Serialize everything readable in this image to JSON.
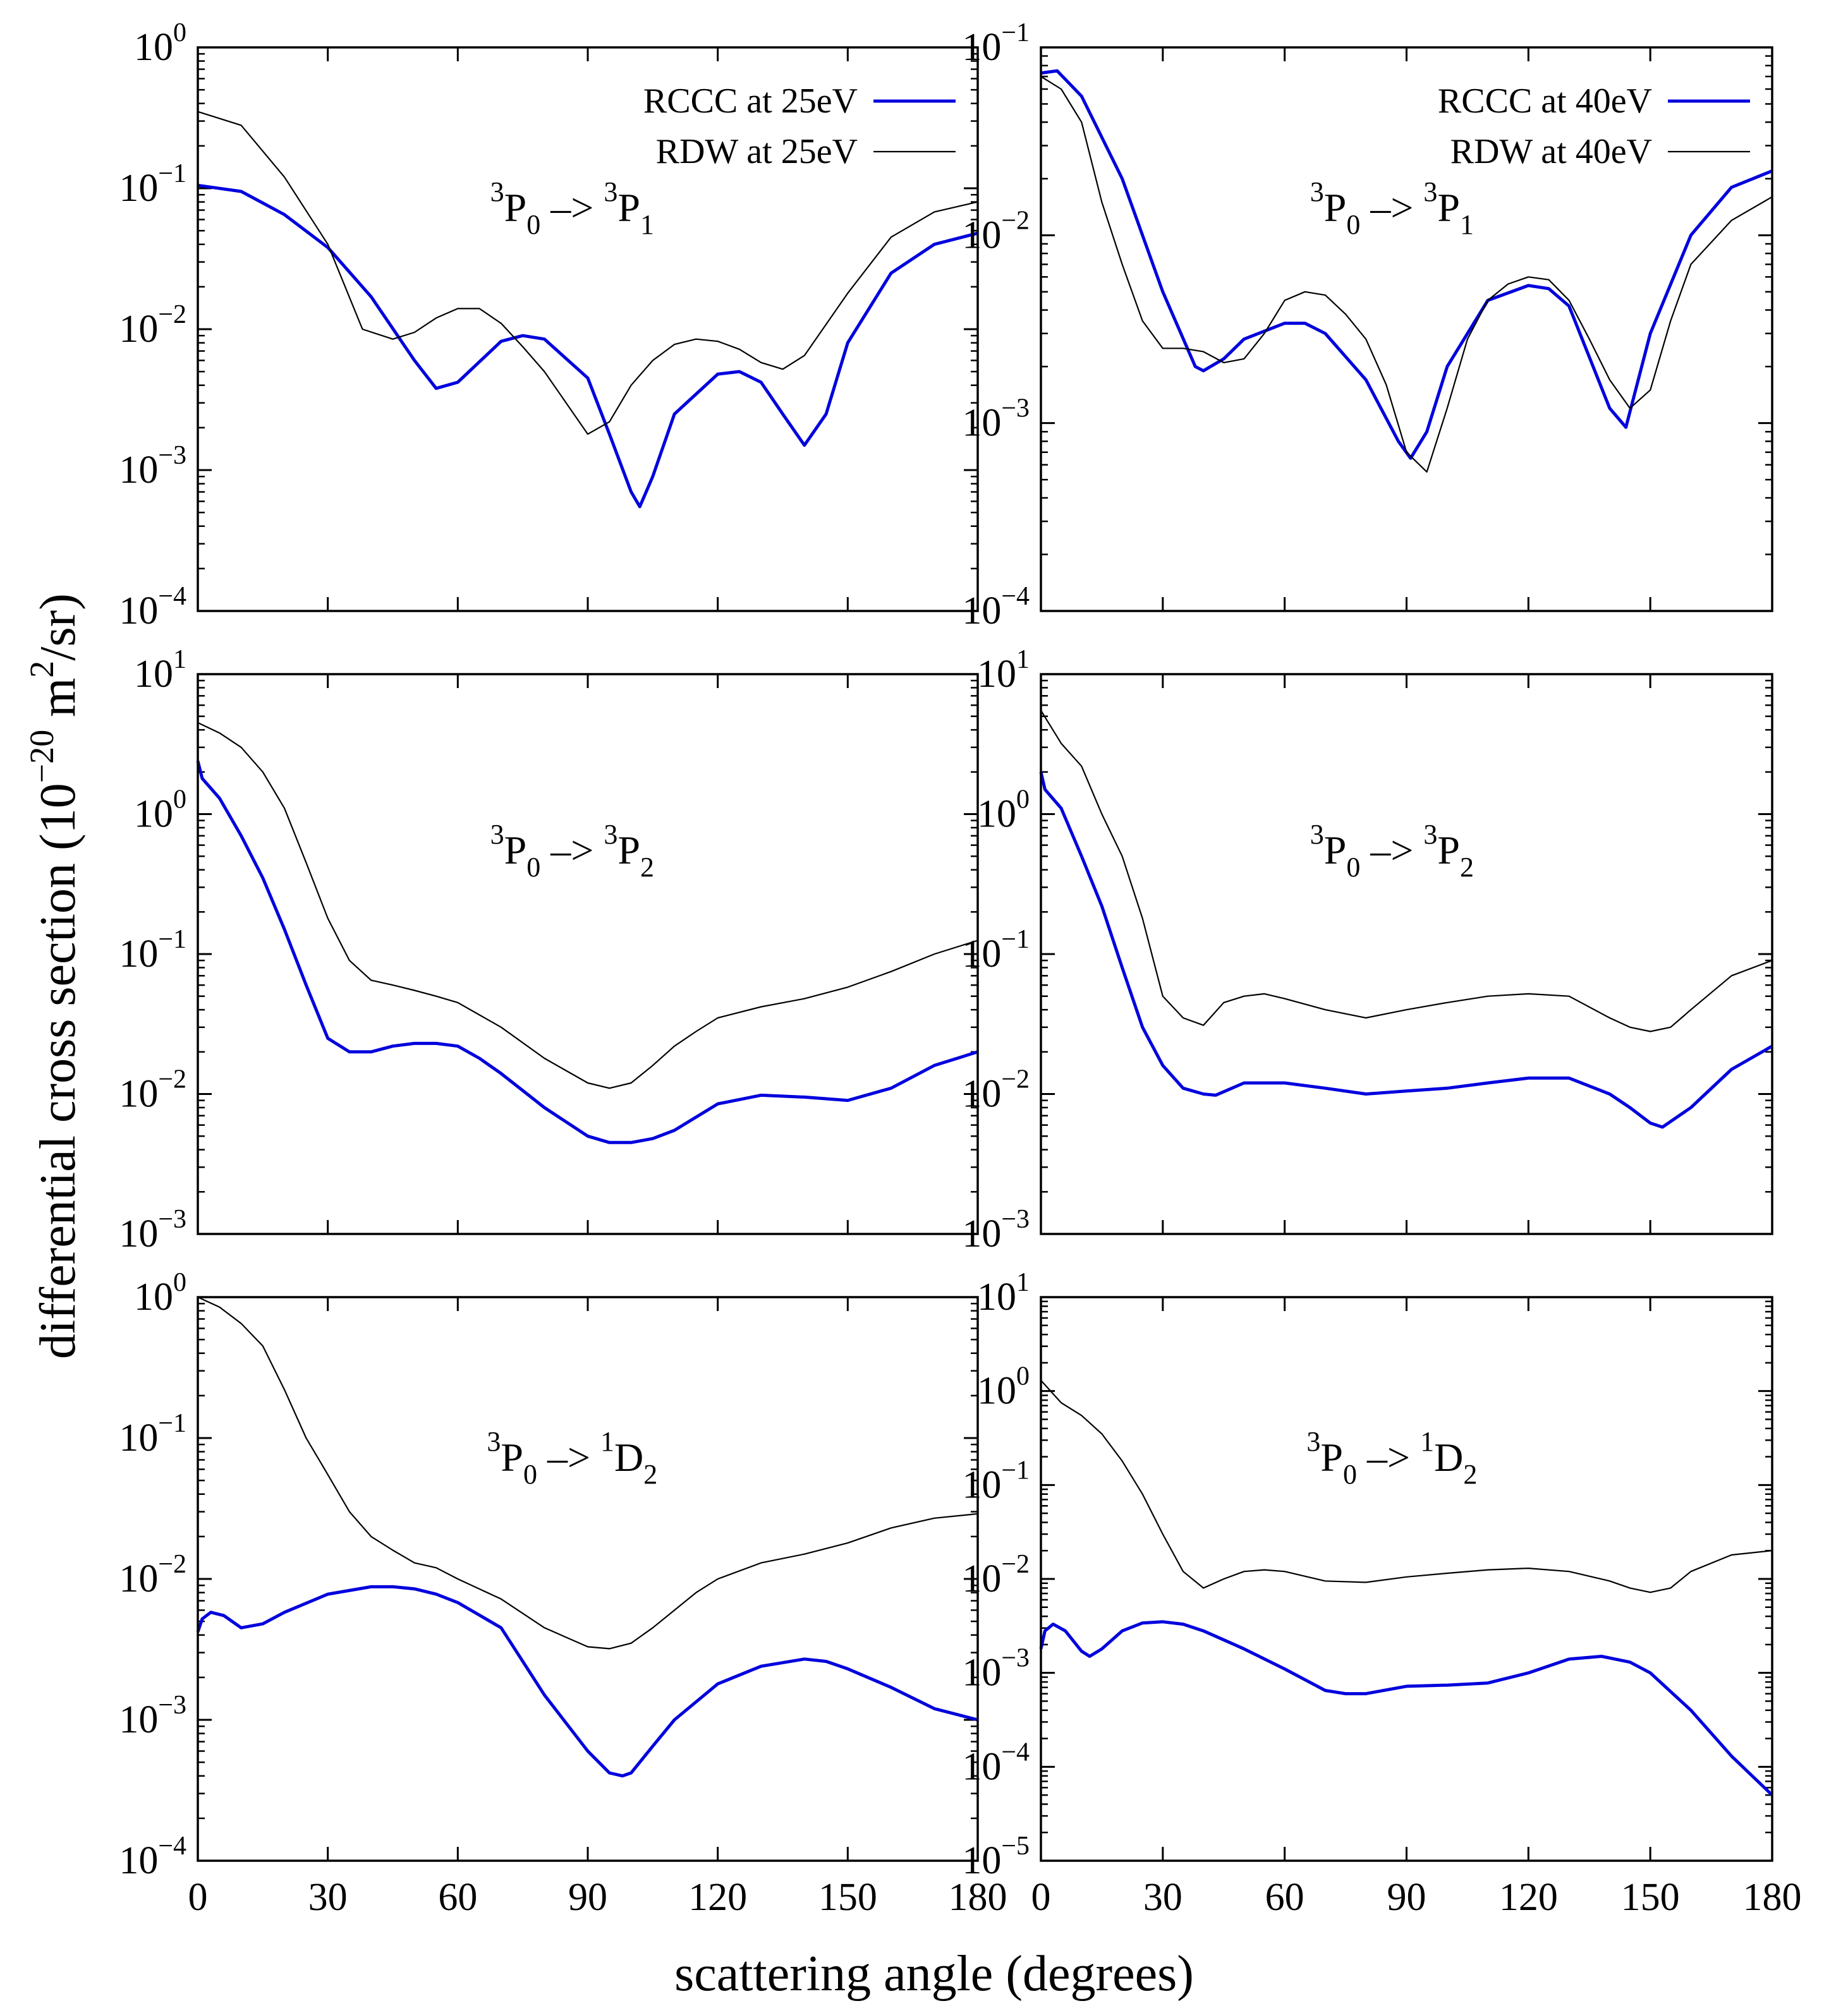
{
  "figure": {
    "xlabel": "scattering angle (degrees)",
    "ylabel": {
      "prefix": "differential cross section (10",
      "exp": "−20",
      "mid": " m",
      "exp2": "2",
      "suffix": "/sr)"
    }
  },
  "colors": {
    "rccc": "#0000dd",
    "rdw": "#000000",
    "axis": "#000000"
  },
  "chart_data": [
    {
      "id": "p1",
      "type": "line",
      "yscale": "log",
      "xlim": [
        0,
        180
      ],
      "ylim_exp": [
        -4,
        0
      ],
      "xticks": [
        0,
        30,
        60,
        90,
        120,
        150,
        180
      ],
      "label": {
        "a": "3",
        "b": "P",
        "c": "0",
        "d": " –> ",
        "e": "3",
        "f": "P",
        "g": "1"
      },
      "legend": [
        {
          "name": "RCCC at 25eV",
          "key": "rccc"
        },
        {
          "name": "RDW at 25eV",
          "key": "rdw"
        }
      ],
      "series": [
        {
          "name": "RCCC at 25eV",
          "key": "rccc",
          "x": [
            0,
            10,
            20,
            30,
            40,
            50,
            55,
            60,
            70,
            75,
            80,
            90,
            95,
            100,
            102,
            105,
            110,
            120,
            125,
            130,
            135,
            140,
            145,
            150,
            160,
            170,
            180
          ],
          "y": [
            0.105,
            0.095,
            0.065,
            0.038,
            0.017,
            0.006,
            0.0038,
            0.0042,
            0.0082,
            0.009,
            0.0085,
            0.0045,
            0.0018,
            0.0007,
            0.00055,
            0.0009,
            0.0025,
            0.0048,
            0.005,
            0.0042,
            0.0025,
            0.0015,
            0.0025,
            0.008,
            0.025,
            0.04,
            0.048
          ]
        },
        {
          "name": "RDW at 25eV",
          "key": "rdw",
          "x": [
            0,
            10,
            20,
            30,
            38,
            45,
            50,
            55,
            60,
            65,
            70,
            75,
            80,
            85,
            90,
            95,
            100,
            105,
            110,
            115,
            120,
            125,
            130,
            135,
            140,
            150,
            160,
            170,
            180
          ],
          "y": [
            0.35,
            0.28,
            0.12,
            0.04,
            0.01,
            0.0085,
            0.0095,
            0.012,
            0.014,
            0.014,
            0.011,
            0.0075,
            0.005,
            0.003,
            0.0018,
            0.0022,
            0.004,
            0.006,
            0.0078,
            0.0085,
            0.0082,
            0.0072,
            0.0058,
            0.0052,
            0.0065,
            0.018,
            0.045,
            0.068,
            0.08
          ]
        }
      ]
    },
    {
      "id": "p2",
      "type": "line",
      "yscale": "log",
      "xlim": [
        0,
        180
      ],
      "ylim_exp": [
        -4,
        -1
      ],
      "xticks": [
        0,
        30,
        60,
        90,
        120,
        150,
        180
      ],
      "label": {
        "a": "3",
        "b": "P",
        "c": "0",
        "d": " –> ",
        "e": "3",
        "f": "P",
        "g": "1"
      },
      "legend": [
        {
          "name": "RCCC at 40eV",
          "key": "rccc"
        },
        {
          "name": "RDW at 40eV",
          "key": "rdw"
        }
      ],
      "series": [
        {
          "name": "RCCC at 40eV",
          "key": "rccc",
          "x": [
            0,
            4,
            10,
            20,
            30,
            38,
            40,
            45,
            50,
            60,
            65,
            70,
            80,
            88,
            91,
            95,
            100,
            110,
            120,
            125,
            130,
            140,
            144,
            150,
            160,
            170,
            180
          ],
          "y": [
            0.073,
            0.075,
            0.055,
            0.02,
            0.005,
            0.002,
            0.0019,
            0.0022,
            0.0028,
            0.0034,
            0.0034,
            0.003,
            0.0017,
            0.0008,
            0.00065,
            0.0009,
            0.002,
            0.0045,
            0.0054,
            0.0052,
            0.0042,
            0.0012,
            0.00095,
            0.003,
            0.01,
            0.018,
            0.022
          ]
        },
        {
          "name": "RDW at 40eV",
          "key": "rdw",
          "x": [
            0,
            5,
            10,
            15,
            20,
            25,
            30,
            35,
            40,
            45,
            50,
            55,
            60,
            65,
            70,
            75,
            80,
            85,
            90,
            95,
            100,
            105,
            110,
            115,
            120,
            125,
            130,
            135,
            140,
            145,
            150,
            155,
            160,
            170,
            180
          ],
          "y": [
            0.07,
            0.06,
            0.04,
            0.015,
            0.007,
            0.0035,
            0.0025,
            0.0025,
            0.0024,
            0.0021,
            0.0022,
            0.003,
            0.0045,
            0.005,
            0.0048,
            0.0038,
            0.0028,
            0.0016,
            0.0007,
            0.00055,
            0.0012,
            0.0028,
            0.0045,
            0.0055,
            0.006,
            0.0058,
            0.0045,
            0.0028,
            0.0017,
            0.0012,
            0.0015,
            0.0035,
            0.007,
            0.012,
            0.016
          ]
        }
      ]
    },
    {
      "id": "p3",
      "type": "line",
      "yscale": "log",
      "xlim": [
        0,
        180
      ],
      "ylim_exp": [
        -3,
        1
      ],
      "xticks": [
        0,
        30,
        60,
        90,
        120,
        150,
        180
      ],
      "label": {
        "a": "3",
        "b": "P",
        "c": "0",
        "d": " –> ",
        "e": "3",
        "f": "P",
        "g": "2"
      },
      "legend": [],
      "series": [
        {
          "name": "RCCC at 25eV",
          "key": "rccc",
          "x": [
            0,
            1,
            5,
            10,
            15,
            20,
            25,
            30,
            35,
            40,
            45,
            50,
            55,
            60,
            65,
            70,
            80,
            90,
            95,
            100,
            105,
            110,
            120,
            130,
            140,
            150,
            160,
            170,
            180
          ],
          "y": [
            2.4,
            1.8,
            1.3,
            0.7,
            0.35,
            0.15,
            0.06,
            0.025,
            0.02,
            0.02,
            0.022,
            0.023,
            0.023,
            0.022,
            0.018,
            0.014,
            0.008,
            0.005,
            0.0045,
            0.0045,
            0.0048,
            0.0055,
            0.0085,
            0.0098,
            0.0095,
            0.009,
            0.011,
            0.016,
            0.02
          ]
        },
        {
          "name": "RDW at 25eV",
          "key": "rdw",
          "x": [
            0,
            5,
            10,
            15,
            20,
            25,
            30,
            35,
            40,
            45,
            50,
            55,
            60,
            70,
            80,
            90,
            95,
            100,
            105,
            110,
            115,
            120,
            130,
            140,
            150,
            160,
            170,
            180
          ],
          "y": [
            4.5,
            3.8,
            3.0,
            2.0,
            1.1,
            0.45,
            0.18,
            0.09,
            0.065,
            0.06,
            0.055,
            0.05,
            0.045,
            0.03,
            0.018,
            0.012,
            0.011,
            0.012,
            0.016,
            0.022,
            0.028,
            0.035,
            0.042,
            0.048,
            0.058,
            0.075,
            0.1,
            0.125
          ]
        }
      ]
    },
    {
      "id": "p4",
      "type": "line",
      "yscale": "log",
      "xlim": [
        0,
        180
      ],
      "ylim_exp": [
        -3,
        1
      ],
      "xticks": [
        0,
        30,
        60,
        90,
        120,
        150,
        180
      ],
      "label": {
        "a": "3",
        "b": "P",
        "c": "0",
        "d": " –> ",
        "e": "3",
        "f": "P",
        "g": "2"
      },
      "legend": [],
      "series": [
        {
          "name": "RCCC at 40eV",
          "key": "rccc",
          "x": [
            0,
            1,
            5,
            10,
            15,
            20,
            25,
            30,
            35,
            40,
            43,
            50,
            60,
            70,
            80,
            90,
            100,
            110,
            120,
            130,
            140,
            145,
            150,
            153,
            160,
            170,
            180
          ],
          "y": [
            2.0,
            1.5,
            1.1,
            0.5,
            0.22,
            0.08,
            0.03,
            0.016,
            0.011,
            0.01,
            0.0098,
            0.012,
            0.012,
            0.011,
            0.01,
            0.0105,
            0.011,
            0.012,
            0.013,
            0.013,
            0.01,
            0.008,
            0.0062,
            0.0058,
            0.008,
            0.015,
            0.022
          ]
        },
        {
          "name": "RDW at 40eV",
          "key": "rdw",
          "x": [
            0,
            5,
            10,
            15,
            20,
            25,
            30,
            35,
            40,
            45,
            50,
            55,
            60,
            70,
            80,
            90,
            100,
            110,
            120,
            130,
            140,
            145,
            150,
            155,
            160,
            170,
            180
          ],
          "y": [
            5.5,
            3.2,
            2.2,
            1.0,
            0.5,
            0.18,
            0.05,
            0.035,
            0.031,
            0.045,
            0.05,
            0.052,
            0.048,
            0.04,
            0.035,
            0.04,
            0.045,
            0.05,
            0.052,
            0.05,
            0.035,
            0.03,
            0.028,
            0.03,
            0.04,
            0.07,
            0.09
          ]
        }
      ]
    },
    {
      "id": "p5",
      "type": "line",
      "yscale": "log",
      "xlim": [
        0,
        180
      ],
      "ylim_exp": [
        -4,
        0
      ],
      "xticks": [
        0,
        30,
        60,
        90,
        120,
        150,
        180
      ],
      "label": {
        "a": "3",
        "b": "P",
        "c": "0",
        "d": " –> ",
        "e": "1",
        "f": "D",
        "g": "2"
      },
      "legend": [],
      "series": [
        {
          "name": "RCCC at 25eV",
          "key": "rccc",
          "x": [
            0,
            1,
            3,
            6,
            10,
            15,
            20,
            30,
            40,
            45,
            50,
            55,
            60,
            70,
            80,
            90,
            95,
            98,
            100,
            105,
            110,
            120,
            130,
            140,
            145,
            150,
            160,
            170,
            180
          ],
          "y": [
            0.0042,
            0.0052,
            0.0058,
            0.0055,
            0.0045,
            0.0048,
            0.0058,
            0.0078,
            0.0088,
            0.0088,
            0.0085,
            0.0078,
            0.0068,
            0.0045,
            0.0015,
            0.0006,
            0.00042,
            0.0004,
            0.00042,
            0.00065,
            0.001,
            0.0018,
            0.0024,
            0.0027,
            0.0026,
            0.0023,
            0.0017,
            0.0012,
            0.001
          ]
        },
        {
          "name": "RDW at 25eV",
          "key": "rdw",
          "x": [
            0,
            5,
            10,
            15,
            20,
            25,
            30,
            35,
            40,
            45,
            50,
            55,
            60,
            70,
            80,
            90,
            95,
            100,
            105,
            110,
            115,
            120,
            130,
            140,
            150,
            160,
            170,
            180
          ],
          "y": [
            1.0,
            0.85,
            0.65,
            0.45,
            0.22,
            0.1,
            0.055,
            0.03,
            0.02,
            0.016,
            0.013,
            0.012,
            0.01,
            0.0072,
            0.0045,
            0.0033,
            0.0032,
            0.0035,
            0.0045,
            0.006,
            0.008,
            0.01,
            0.013,
            0.015,
            0.018,
            0.023,
            0.027,
            0.029
          ]
        }
      ]
    },
    {
      "id": "p6",
      "type": "line",
      "yscale": "log",
      "xlim": [
        0,
        180
      ],
      "ylim_exp": [
        -5,
        1
      ],
      "xticks": [
        0,
        30,
        60,
        90,
        120,
        150,
        180
      ],
      "label": {
        "a": "3",
        "b": "P",
        "c": "0",
        "d": " –> ",
        "e": "1",
        "f": "D",
        "g": "2"
      },
      "legend": [],
      "series": [
        {
          "name": "RCCC at 40eV",
          "key": "rccc",
          "x": [
            0,
            1,
            3,
            6,
            10,
            12,
            15,
            20,
            25,
            30,
            35,
            40,
            50,
            60,
            70,
            75,
            80,
            90,
            100,
            110,
            120,
            130,
            138,
            145,
            150,
            160,
            170,
            180
          ],
          "y": [
            0.0018,
            0.0028,
            0.0033,
            0.0028,
            0.0017,
            0.0015,
            0.0018,
            0.0028,
            0.0034,
            0.0035,
            0.0033,
            0.0028,
            0.0018,
            0.0011,
            0.00065,
            0.0006,
            0.0006,
            0.00072,
            0.00074,
            0.00078,
            0.001,
            0.0014,
            0.0015,
            0.0013,
            0.001,
            0.0004,
            0.00013,
            5e-05
          ]
        },
        {
          "name": "RDW at 40eV",
          "key": "rdw",
          "x": [
            0,
            5,
            10,
            15,
            20,
            25,
            30,
            35,
            40,
            45,
            50,
            55,
            60,
            70,
            80,
            90,
            100,
            110,
            120,
            130,
            140,
            145,
            150,
            155,
            160,
            170,
            180
          ],
          "y": [
            1.3,
            0.75,
            0.55,
            0.35,
            0.18,
            0.08,
            0.03,
            0.012,
            0.008,
            0.01,
            0.012,
            0.0125,
            0.012,
            0.0095,
            0.0092,
            0.0105,
            0.0115,
            0.0125,
            0.013,
            0.012,
            0.0095,
            0.008,
            0.0072,
            0.008,
            0.012,
            0.018,
            0.02
          ]
        }
      ]
    }
  ]
}
